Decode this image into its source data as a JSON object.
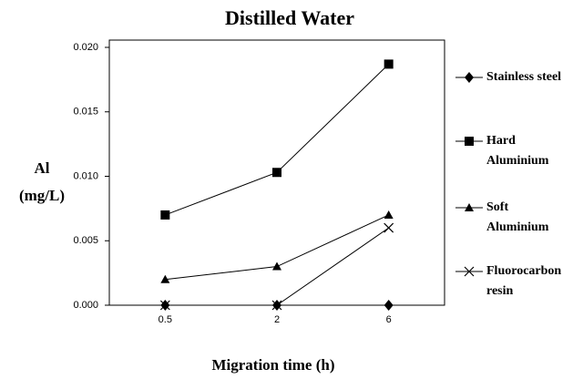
{
  "chart_data": {
    "type": "line",
    "title": "Distilled Water",
    "x_label": "Migration time (h)",
    "y_label": "Al (mg/L)",
    "categories": [
      "0.5",
      "2",
      "6"
    ],
    "ylim": [
      0,
      0.02
    ],
    "yticks": [
      {
        "value": 0,
        "label": "0.000"
      },
      {
        "value": 0.005,
        "label": "0.005"
      },
      {
        "value": 0.01,
        "label": "0.010"
      },
      {
        "value": 0.015,
        "label": "0.015"
      },
      {
        "value": 0.02,
        "label": "0.020"
      }
    ],
    "grid": false,
    "legend": "right",
    "series": [
      {
        "name": "Stainless steel",
        "color": "#000000",
        "marker": "diamond",
        "values": [
          0,
          0,
          0
        ]
      },
      {
        "name": "Hard Aluminium",
        "color": "#000000",
        "marker": "square",
        "values": [
          0.007,
          0.0103,
          0.0187
        ]
      },
      {
        "name": "Soft Aluminium",
        "color": "#000000",
        "marker": "triangle",
        "values": [
          0.002,
          0.003,
          0.007
        ]
      },
      {
        "name": "Fluorocarbon resin",
        "color": "#000000",
        "marker": "x",
        "values": [
          0,
          0,
          0.006
        ]
      }
    ]
  }
}
